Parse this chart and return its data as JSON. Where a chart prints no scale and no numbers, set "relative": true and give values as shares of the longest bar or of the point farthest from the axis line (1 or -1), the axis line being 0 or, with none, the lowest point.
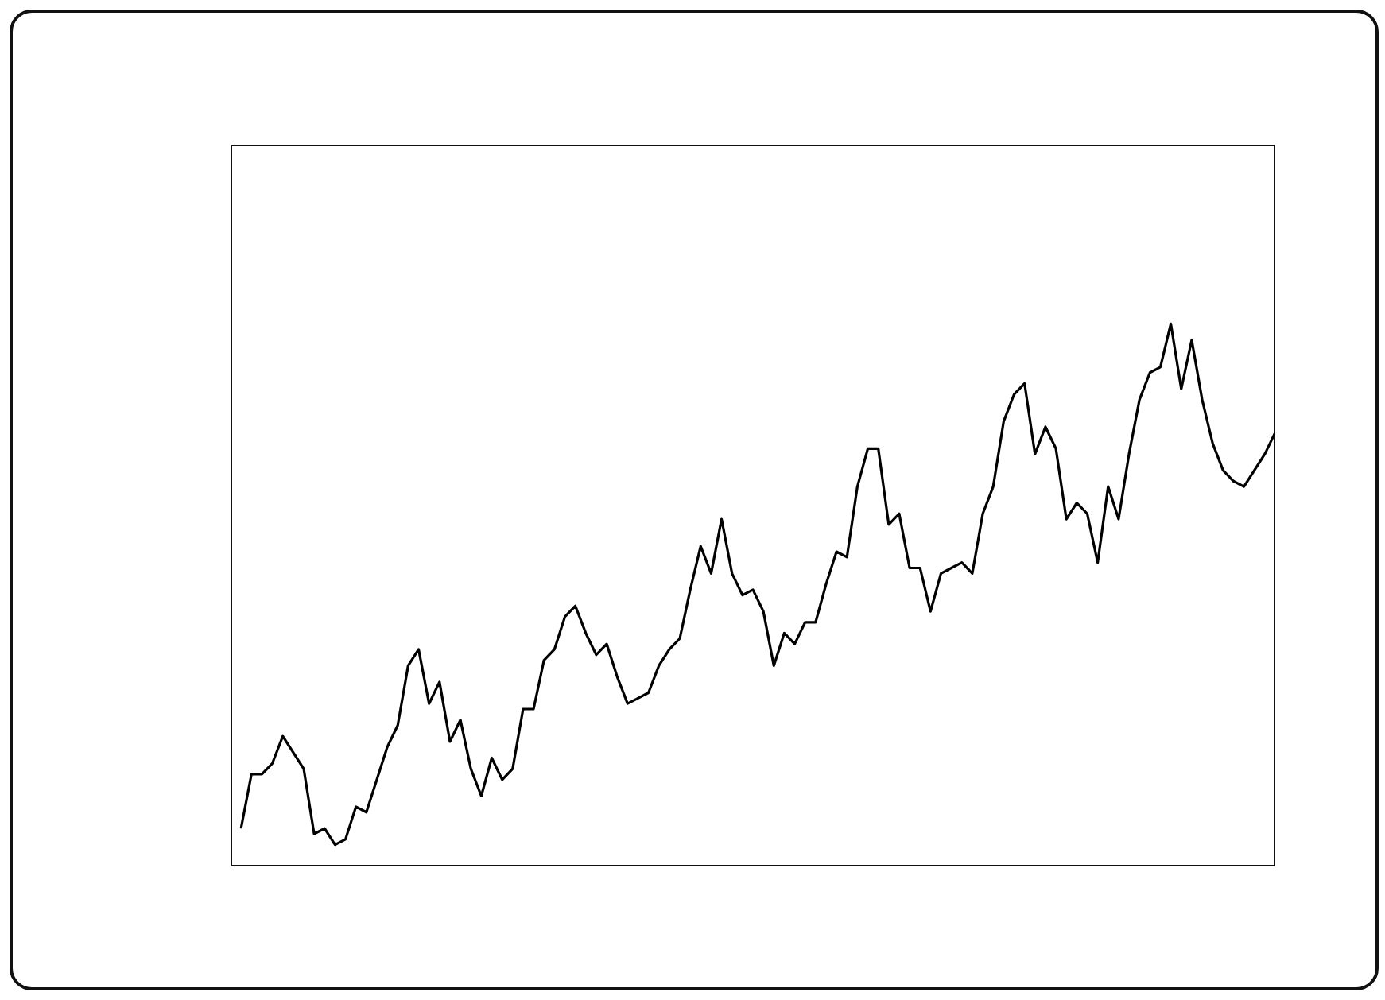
{
  "chart_data": {
    "type": "line",
    "relative": true,
    "tick_labels": false,
    "marker": "none",
    "color": "#000000",
    "categories": [
      null,
      null,
      null,
      null,
      null,
      null,
      null,
      null,
      null,
      null,
      null,
      null,
      null,
      null,
      null,
      null,
      null,
      null,
      null,
      null,
      null,
      null,
      null,
      null,
      null,
      null,
      null,
      null,
      null,
      null,
      null,
      null,
      null,
      null,
      null,
      null,
      null,
      null,
      null,
      null,
      null,
      null,
      null,
      null,
      null,
      null,
      null,
      null,
      null,
      null,
      null,
      null,
      null,
      null,
      null,
      null,
      null,
      null,
      null,
      null,
      null,
      null,
      null,
      null,
      null,
      null,
      null,
      null,
      null,
      null,
      null,
      null,
      null,
      null,
      null,
      null,
      null,
      null,
      null,
      null,
      null,
      null,
      null,
      null,
      null,
      null,
      null,
      null,
      null,
      null,
      null,
      null,
      null,
      null,
      null,
      null,
      null,
      null,
      null,
      null
    ],
    "values": [
      0.07,
      0.17,
      0.17,
      0.19,
      0.24,
      0.21,
      0.18,
      0.06,
      0.07,
      0.04,
      0.05,
      0.11,
      0.1,
      0.16,
      0.22,
      0.26,
      0.37,
      0.4,
      0.3,
      0.34,
      0.23,
      0.27,
      0.18,
      0.13,
      0.2,
      0.16,
      0.18,
      0.29,
      0.29,
      0.38,
      0.4,
      0.46,
      0.48,
      0.43,
      0.39,
      0.41,
      0.35,
      0.3,
      0.31,
      0.32,
      0.37,
      0.4,
      0.42,
      0.51,
      0.59,
      0.54,
      0.64,
      0.54,
      0.5,
      0.51,
      0.47,
      0.37,
      0.43,
      0.41,
      0.45,
      0.45,
      0.52,
      0.58,
      0.57,
      0.7,
      0.77,
      0.77,
      0.63,
      0.65,
      0.55,
      0.55,
      0.47,
      0.54,
      0.55,
      0.56,
      0.54,
      0.65,
      0.7,
      0.82,
      0.87,
      0.89,
      0.76,
      0.81,
      0.77,
      0.64,
      0.67,
      0.65,
      0.56,
      0.7,
      0.64,
      0.76,
      0.86,
      0.91,
      0.92,
      1,
      0.88,
      0.97,
      0.86,
      0.78,
      0.73,
      0.71,
      0.7,
      0.73,
      0.76,
      0.8
    ]
  }
}
